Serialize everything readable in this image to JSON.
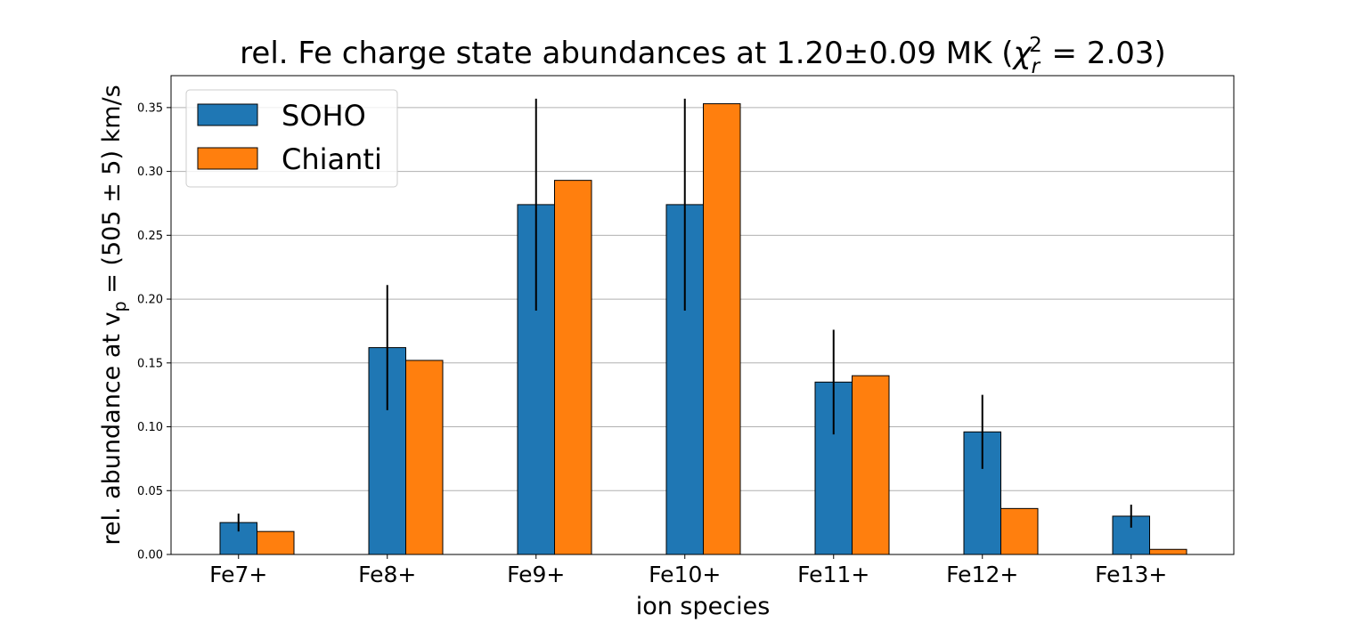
{
  "chart_data": {
    "type": "bar",
    "title": {
      "prefix": "rel. Fe charge state abundances at 1.20±0.09 MK (",
      "chi": "χ",
      "chi_sub": "r",
      "chi_sup": "2",
      "suffix": " = 2.03)"
    },
    "xlabel": "ion species",
    "ylabel": {
      "prefix": "rel. abundance at v",
      "sub": "p",
      "suffix": " = (505 ± 5) km/s"
    },
    "categories": [
      "Fe7+",
      "Fe8+",
      "Fe9+",
      "Fe10+",
      "Fe11+",
      "Fe12+",
      "Fe13+"
    ],
    "series": [
      {
        "name": "SOHO",
        "color": "#1f77b4",
        "values": [
          0.025,
          0.162,
          0.274,
          0.274,
          0.135,
          0.096,
          0.03
        ],
        "errors": [
          0.007,
          0.049,
          0.083,
          0.083,
          0.041,
          0.029,
          0.009
        ]
      },
      {
        "name": "Chianti",
        "color": "#ff7f0e",
        "values": [
          0.018,
          0.152,
          0.293,
          0.353,
          0.14,
          0.036,
          0.004
        ],
        "errors": null
      }
    ],
    "ylim": [
      0,
      0.375
    ],
    "yticks": [
      0.0,
      0.05,
      0.1,
      0.15,
      0.2,
      0.25,
      0.3,
      0.35
    ],
    "ytick_labels": [
      "0.00",
      "0.05",
      "0.10",
      "0.15",
      "0.20",
      "0.25",
      "0.30",
      "0.35"
    ],
    "grid": "y",
    "legend_position": "top-left"
  }
}
